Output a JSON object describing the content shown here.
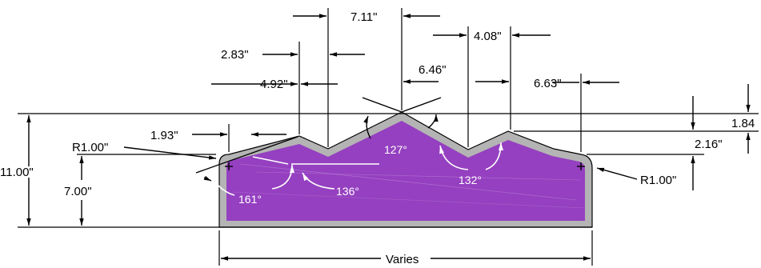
{
  "colors": {
    "fill": "#9540c0",
    "border": "#b4b4b4",
    "line": "#000000",
    "angle_text": "#ffffff"
  },
  "dimensions": {
    "top_7_11": "7.11\"",
    "top_2_83": "2.83\"",
    "top_4_08": "4.08\"",
    "top_4_92": "4.92\"",
    "top_6_46": "6.46\"",
    "top_6_63": "6.63\"",
    "left_1_93": "1.93\"",
    "radius_left": "R1.00\"",
    "radius_right": "R1.00\"",
    "height_11_00": "11.00\"",
    "height_7_00": "7.00\"",
    "right_1_84": "1.84",
    "right_2_16": "2.16\"",
    "width_varies": "Varies"
  },
  "angles": {
    "a127": "127°",
    "a132": "132°",
    "a161": "161°",
    "a136": "136°"
  }
}
